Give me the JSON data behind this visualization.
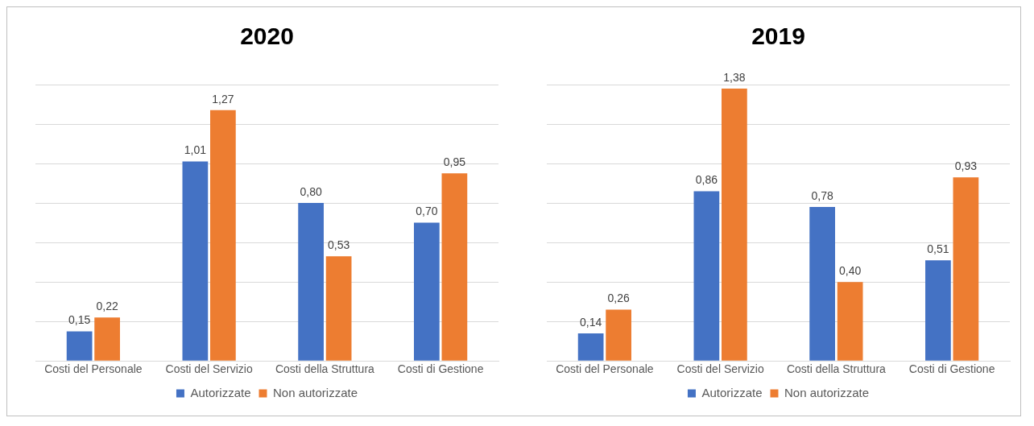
{
  "chart_data": [
    {
      "type": "bar",
      "title": "2020",
      "categories": [
        "Costi del Personale",
        "Costi del Servizio",
        "Costi della Struttura",
        "Costi di Gestione"
      ],
      "series": [
        {
          "name": "Autorizzate",
          "color": "#4472c4",
          "values": [
            0.15,
            1.01,
            0.8,
            0.7
          ],
          "value_labels": [
            "0,15",
            "1,01",
            "0,80",
            "0,70"
          ]
        },
        {
          "name": "Non autorizzate",
          "color": "#ed7d31",
          "values": [
            0.22,
            1.27,
            0.53,
            0.95
          ],
          "value_labels": [
            "0,22",
            "1,27",
            "0,53",
            "0,95"
          ]
        }
      ],
      "grid": "y",
      "legend": "bottom",
      "tick_labels": "x"
    },
    {
      "type": "bar",
      "title": "2019",
      "categories": [
        "Costi del Personale",
        "Costi del Servizio",
        "Costi della Struttura",
        "Costi di Gestione"
      ],
      "series": [
        {
          "name": "Autorizzate",
          "color": "#4472c4",
          "values": [
            0.14,
            0.86,
            0.78,
            0.51
          ],
          "value_labels": [
            "0,14",
            "0,86",
            "0,78",
            "0,51"
          ]
        },
        {
          "name": "Non autorizzate",
          "color": "#ed7d31",
          "values": [
            0.26,
            1.38,
            0.4,
            0.93
          ],
          "value_labels": [
            "0,26",
            "1,38",
            "0,40",
            "0,93"
          ]
        }
      ],
      "grid": "y",
      "legend": "bottom",
      "tick_labels": "x"
    }
  ]
}
